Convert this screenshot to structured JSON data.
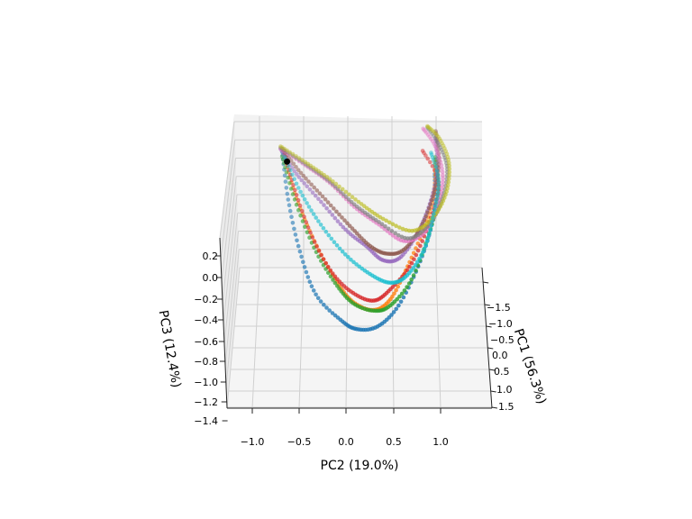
{
  "chart_data": {
    "type": "scatter",
    "projection": "3d",
    "xlabel": "PC1 (56.3%)",
    "ylabel": "PC2 (19.0%)",
    "zlabel": "PC3 (12.4%)",
    "x_ticks": [
      "−1.5",
      "−1.0",
      "−0.5",
      "0.0",
      "0.5",
      "1.0",
      "1.5"
    ],
    "y_ticks": [
      "−1.0",
      "−0.5",
      "0.0",
      "0.5",
      "1.0"
    ],
    "z_ticks": [
      "0.2",
      "0.0",
      "−0.2",
      "−0.4",
      "−0.6",
      "−0.8",
      "−1.0",
      "−1.2",
      "−1.4"
    ],
    "xlim": [
      -1.8,
      1.6
    ],
    "ylim": [
      -1.25,
      1.55
    ],
    "zlim": [
      -1.4,
      0.3
    ],
    "grid": true,
    "series": [
      {
        "color": "#1f77b4",
        "values": [
          [
            -1.6,
            -0.78,
            0.05
          ],
          [
            -1.1,
            -0.7,
            -0.3
          ],
          [
            -0.6,
            -0.55,
            -0.72
          ],
          [
            -0.1,
            -0.35,
            -1.0
          ],
          [
            0.3,
            -0.05,
            -1.08
          ],
          [
            0.5,
            0.15,
            -1.07
          ],
          [
            0.6,
            0.4,
            -0.95
          ],
          [
            0.5,
            0.65,
            -0.7
          ],
          [
            0.0,
            0.9,
            -0.4
          ],
          [
            -0.6,
            1.05,
            -0.15
          ],
          [
            -1.2,
            1.05,
            0.02
          ]
        ]
      },
      {
        "color": "#ff7f0e",
        "values": [
          [
            -1.5,
            -0.75,
            0.05
          ],
          [
            -1.0,
            -0.6,
            -0.2
          ],
          [
            -0.5,
            -0.35,
            -0.55
          ],
          [
            -0.1,
            -0.1,
            -0.8
          ],
          [
            0.2,
            0.1,
            -0.88
          ],
          [
            0.4,
            0.35,
            -0.85
          ],
          [
            0.4,
            0.55,
            -0.68
          ],
          [
            0.1,
            0.75,
            -0.4
          ],
          [
            -0.4,
            0.95,
            -0.15
          ],
          [
            -0.9,
            1.05,
            0.0
          ],
          [
            -1.4,
            1.05,
            0.08
          ]
        ]
      },
      {
        "color": "#2ca02c",
        "values": [
          [
            -1.5,
            -0.78,
            0.06
          ],
          [
            -1.0,
            -0.62,
            -0.22
          ],
          [
            -0.5,
            -0.38,
            -0.58
          ],
          [
            -0.1,
            -0.12,
            -0.82
          ],
          [
            0.2,
            0.1,
            -0.9
          ],
          [
            0.4,
            0.35,
            -0.86
          ],
          [
            0.5,
            0.55,
            -0.7
          ],
          [
            0.3,
            0.8,
            -0.45
          ],
          [
            -0.3,
            1.0,
            -0.2
          ],
          [
            -0.9,
            1.1,
            -0.05
          ],
          [
            -1.5,
            1.05,
            0.05
          ]
        ]
      },
      {
        "color": "#d62728",
        "values": [
          [
            -1.6,
            -0.76,
            0.07
          ],
          [
            -1.1,
            -0.62,
            -0.15
          ],
          [
            -0.6,
            -0.4,
            -0.5
          ],
          [
            -0.2,
            -0.15,
            -0.75
          ],
          [
            0.1,
            0.1,
            -0.82
          ],
          [
            0.3,
            0.35,
            -0.78
          ],
          [
            0.3,
            0.55,
            -0.6
          ],
          [
            0.1,
            0.8,
            -0.35
          ],
          [
            -0.4,
            1.0,
            -0.1
          ],
          [
            -1.0,
            1.1,
            0.05
          ],
          [
            -1.5,
            0.9,
            0.15
          ]
        ]
      },
      {
        "color": "#9467bd",
        "values": [
          [
            -1.6,
            -0.8,
            0.1
          ],
          [
            -1.2,
            -0.6,
            0.02
          ],
          [
            -0.8,
            -0.3,
            -0.1
          ],
          [
            -0.4,
            0.0,
            -0.22
          ],
          [
            -0.2,
            0.25,
            -0.32
          ],
          [
            0.0,
            0.45,
            -0.38
          ],
          [
            0.0,
            0.65,
            -0.35
          ],
          [
            -0.3,
            0.85,
            -0.22
          ],
          [
            -0.7,
            1.0,
            -0.05
          ],
          [
            -1.2,
            1.08,
            0.08
          ],
          [
            -1.7,
            1.05,
            0.18
          ]
        ]
      },
      {
        "color": "#8c564b",
        "values": [
          [
            -1.6,
            -0.78,
            0.1
          ],
          [
            -1.2,
            -0.55,
            0.04
          ],
          [
            -0.8,
            -0.25,
            -0.06
          ],
          [
            -0.4,
            0.05,
            -0.16
          ],
          [
            -0.1,
            0.3,
            -0.24
          ],
          [
            0.0,
            0.5,
            -0.28
          ],
          [
            0.0,
            0.7,
            -0.22
          ],
          [
            -0.3,
            0.9,
            -0.1
          ],
          [
            -0.8,
            1.05,
            0.05
          ],
          [
            -1.3,
            1.1,
            0.15
          ],
          [
            -1.8,
            1.05,
            0.22
          ]
        ]
      },
      {
        "color": "#e377c2",
        "values": [
          [
            -1.6,
            -0.8,
            0.1
          ],
          [
            -1.3,
            -0.5,
            0.08
          ],
          [
            -1.0,
            -0.2,
            0.04
          ],
          [
            -0.6,
            0.1,
            -0.02
          ],
          [
            -0.3,
            0.4,
            -0.06
          ],
          [
            0.0,
            0.7,
            -0.08
          ],
          [
            -0.1,
            0.95,
            -0.02
          ],
          [
            -0.5,
            1.1,
            0.08
          ],
          [
            -1.0,
            1.15,
            0.16
          ],
          [
            -1.5,
            1.05,
            0.22
          ],
          [
            -1.8,
            0.9,
            0.26
          ]
        ]
      },
      {
        "color": "#7f7f7f",
        "values": [
          [
            -1.6,
            -0.8,
            0.12
          ],
          [
            -1.3,
            -0.5,
            0.1
          ],
          [
            -1.0,
            -0.2,
            0.06
          ],
          [
            -0.6,
            0.1,
            0.02
          ],
          [
            -0.3,
            0.4,
            -0.02
          ],
          [
            0.0,
            0.75,
            -0.04
          ],
          [
            -0.2,
            1.0,
            0.02
          ],
          [
            -0.6,
            1.15,
            0.1
          ],
          [
            -1.1,
            1.2,
            0.18
          ],
          [
            -1.5,
            1.1,
            0.24
          ],
          [
            -1.8,
            0.95,
            0.28
          ]
        ]
      },
      {
        "color": "#bcbd22",
        "values": [
          [
            -1.6,
            -0.8,
            0.14
          ],
          [
            -1.3,
            -0.5,
            0.13
          ],
          [
            -1.0,
            -0.2,
            0.1
          ],
          [
            -0.6,
            0.15,
            0.06
          ],
          [
            -0.3,
            0.45,
            0.03
          ],
          [
            -0.1,
            0.8,
            0.0
          ],
          [
            -0.3,
            1.05,
            0.06
          ],
          [
            -0.7,
            1.2,
            0.14
          ],
          [
            -1.2,
            1.22,
            0.2
          ],
          [
            -1.6,
            1.1,
            0.26
          ],
          [
            -1.8,
            0.95,
            0.3
          ]
        ]
      },
      {
        "color": "#17becf",
        "values": [
          [
            -1.5,
            -0.75,
            0.05
          ],
          [
            -1.0,
            -0.55,
            -0.1
          ],
          [
            -0.6,
            -0.3,
            -0.3
          ],
          [
            -0.2,
            0.0,
            -0.45
          ],
          [
            0.1,
            0.3,
            -0.52
          ],
          [
            0.3,
            0.55,
            -0.5
          ],
          [
            0.3,
            0.75,
            -0.38
          ],
          [
            0.0,
            0.95,
            -0.2
          ],
          [
            -0.5,
            1.05,
            -0.05
          ],
          [
            -1.0,
            1.1,
            0.06
          ],
          [
            -1.5,
            1.0,
            0.12
          ]
        ]
      }
    ],
    "highlight_point": [
      -1.45,
      -0.72,
      0.02
    ]
  }
}
